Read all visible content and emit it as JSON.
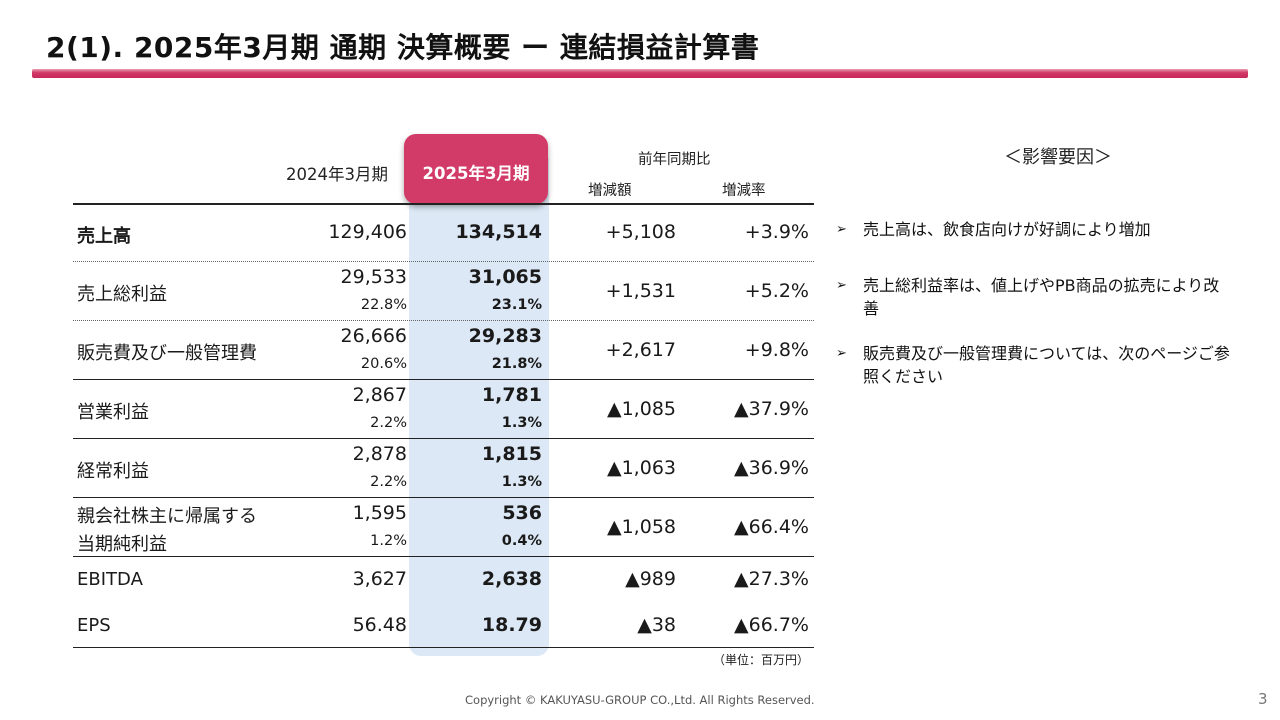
{
  "title": "2(1).  2025年3月期 通期 決算概要  ー  連結損益計算書",
  "table": {
    "col_prev": "2024年3月期",
    "col_curr": "2025年3月期",
    "col_group": "前年同期比",
    "col_diff": "増減額",
    "col_rate": "増減率",
    "rows": [
      {
        "label": "売上高",
        "prev": "129,406",
        "curr": "134,514",
        "diff": "+5,108",
        "rate": "+3.9%"
      },
      {
        "label": "売上総利益",
        "prev": "29,533",
        "prev_pct": "22.8%",
        "curr": "31,065",
        "curr_pct": "23.1%",
        "diff": "+1,531",
        "rate": "+5.2%"
      },
      {
        "label": "販売費及び一般管理費",
        "prev": "26,666",
        "prev_pct": "20.6%",
        "curr": "29,283",
        "curr_pct": "21.8%",
        "diff": "+2,617",
        "rate": "+9.8%"
      },
      {
        "label": "営業利益",
        "prev": "2,867",
        "prev_pct": "2.2%",
        "curr": "1,781",
        "curr_pct": "1.3%",
        "diff": "▲1,085",
        "rate": "▲37.9%"
      },
      {
        "label": "経常利益",
        "prev": "2,878",
        "prev_pct": "2.2%",
        "curr": "1,815",
        "curr_pct": "1.3%",
        "diff": "▲1,063",
        "rate": "▲36.9%"
      },
      {
        "label_line1": "親会社株主に帰属する",
        "label_line2": "当期純利益",
        "prev": "1,595",
        "prev_pct": "1.2%",
        "curr": "536",
        "curr_pct": "0.4%",
        "diff": "▲1,058",
        "rate": "▲66.4%"
      },
      {
        "label": "EBITDA",
        "prev": "3,627",
        "curr": "2,638",
        "diff": "▲989",
        "rate": "▲27.3%"
      },
      {
        "label": "EPS",
        "prev": "56.48",
        "curr": "18.79",
        "diff": "▲38",
        "rate": "▲66.7%"
      }
    ],
    "unit": "（単位：百万円）"
  },
  "factors": {
    "title": "＜影響要因＞",
    "bullet_mark": "➢",
    "items": [
      "売上高は、飲食店向けが好調により増加",
      "売上総利益率は、値上げやPB商品の拡売により改善",
      "販売費及び一般管理費については、次のページご参照ください"
    ]
  },
  "footer": {
    "copyright": "Copyright © KAKUYASU-GROUP CO.,Ltd. All Rights Reserved.",
    "page": "3"
  },
  "colors": {
    "accent": "#d23a68",
    "highlight_column": "#dce8f5"
  }
}
